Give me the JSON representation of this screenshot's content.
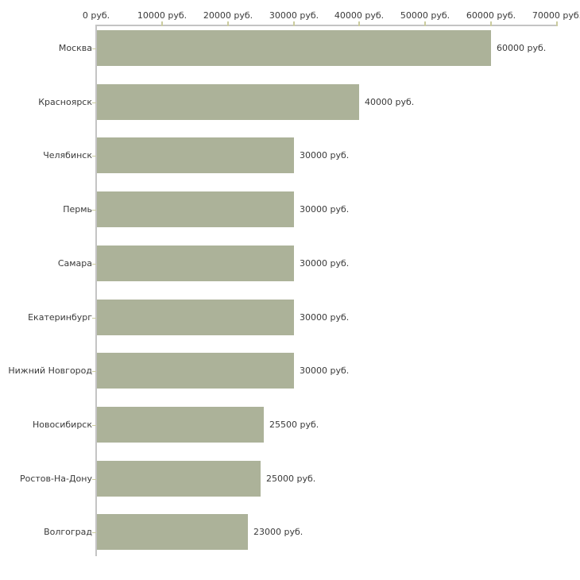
{
  "chart_data": {
    "type": "bar",
    "orientation": "horizontal",
    "unit": "руб.",
    "categories": [
      "Москва",
      "Красноярск",
      "Челябинск",
      "Пермь",
      "Самара",
      "Екатеринбург",
      "Нижний Новгород",
      "Новосибирск",
      "Ростов-На-Дону",
      "Волгоград"
    ],
    "values": [
      60000,
      40000,
      30000,
      30000,
      30000,
      30000,
      30000,
      25500,
      25000,
      23000
    ],
    "value_labels": [
      "60000 руб.",
      "40000 руб.",
      "30000 руб.",
      "30000 руб.",
      "30000 руб.",
      "30000 руб.",
      "30000 руб.",
      "25500 руб.",
      "25000 руб.",
      "23000 руб."
    ],
    "x_axis": {
      "position": "top",
      "min": 0,
      "max": 70000,
      "ticks": [
        0,
        10000,
        20000,
        30000,
        40000,
        50000,
        60000,
        70000
      ],
      "tick_labels": [
        "0 руб.",
        "10000 руб.",
        "20000 руб.",
        "30000 руб.",
        "40000 руб.",
        "50000 руб.",
        "60000 руб.",
        "70000 руб."
      ]
    },
    "grid": false,
    "legend": "none"
  },
  "colors": {
    "bar_fill": "#acb299",
    "axis_line": "#c4c4c4",
    "tick_mark": "#cbcc9f",
    "text": "#3a3a3a",
    "background": "#ffffff"
  }
}
